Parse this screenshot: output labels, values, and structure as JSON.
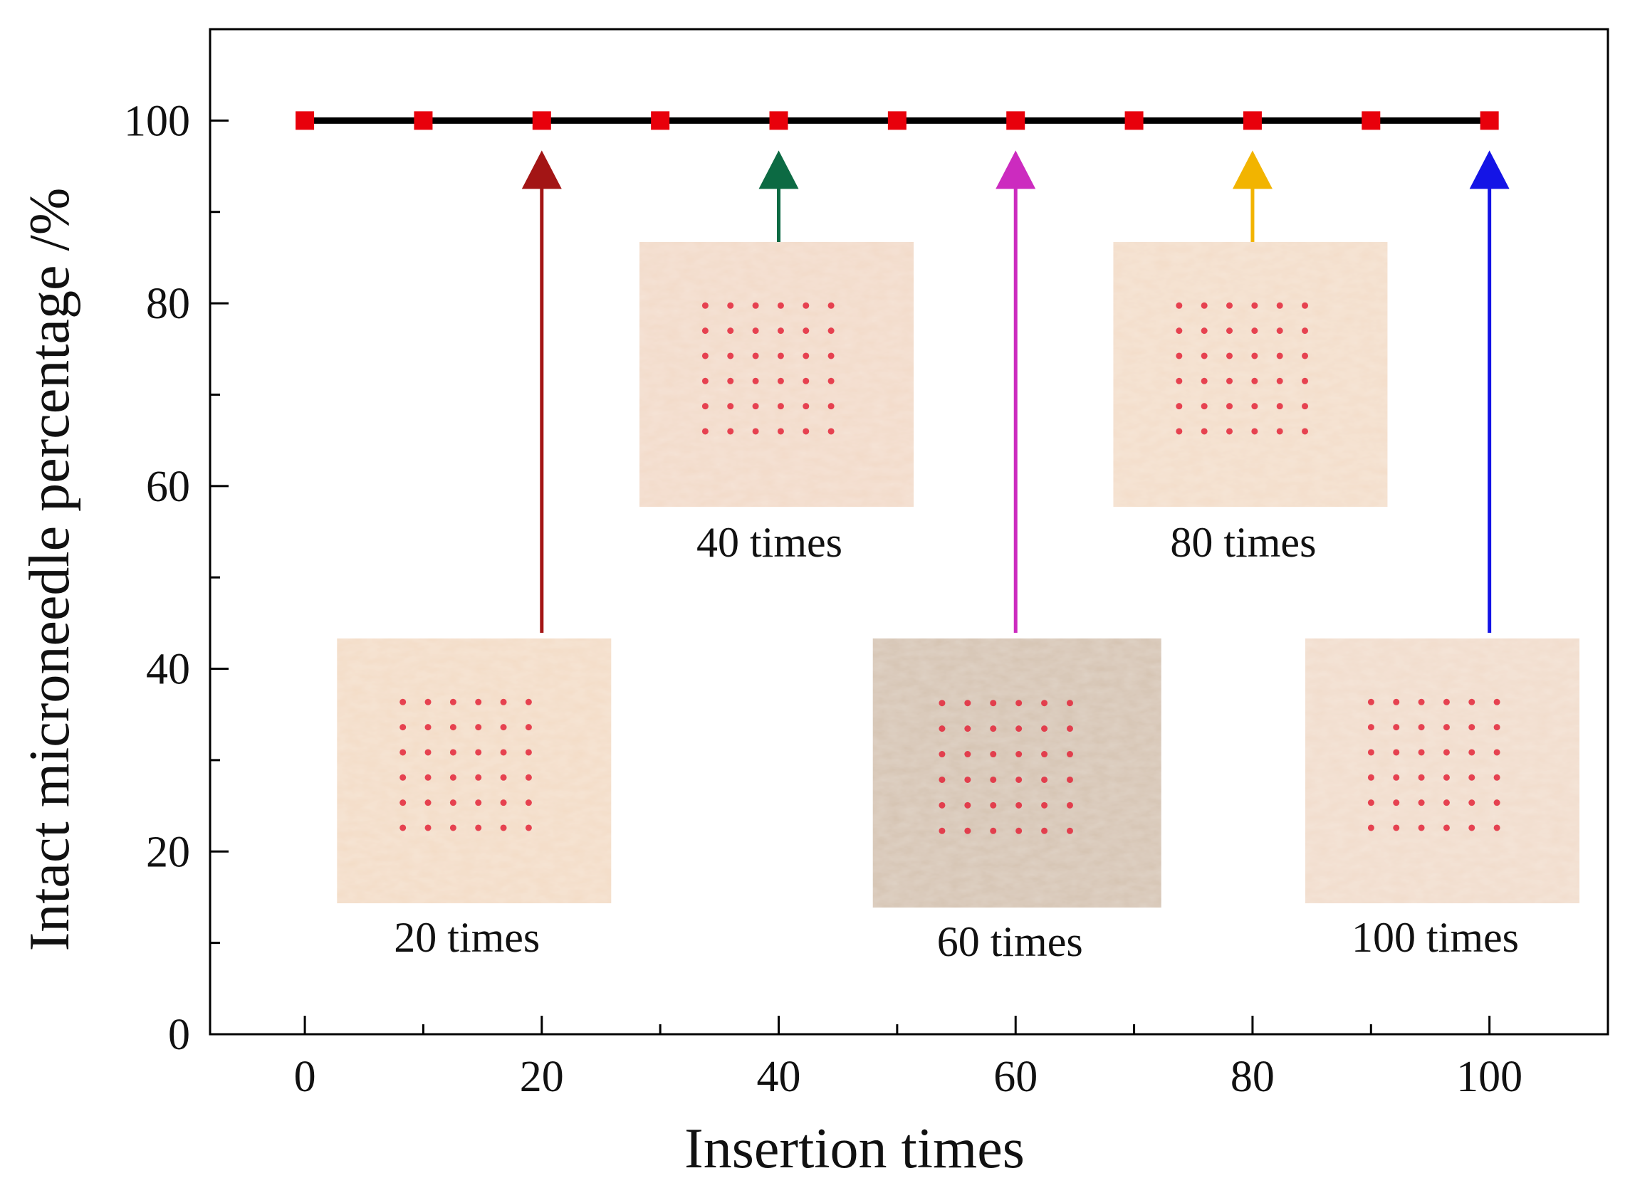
{
  "chart_data": {
    "type": "line",
    "title": "",
    "xlabel": "Insertion times",
    "ylabel": "Intact microneedle percentage /%",
    "xlim": [
      -8,
      110
    ],
    "ylim": [
      0,
      110
    ],
    "grid": false,
    "x_ticks": [
      0,
      20,
      40,
      60,
      80,
      100
    ],
    "x_tick_labels": [
      "0",
      "20",
      "40",
      "60",
      "80",
      "100"
    ],
    "y_ticks": [
      0,
      20,
      40,
      60,
      80,
      100
    ],
    "y_tick_labels": [
      "0",
      "20",
      "40",
      "60",
      "80",
      "100"
    ],
    "series": [
      {
        "name": "Intact microneedle percentage",
        "line_color": "#000000",
        "marker": "square",
        "marker_color": "#e8000b",
        "x": [
          0,
          10,
          20,
          30,
          40,
          50,
          60,
          70,
          80,
          90,
          100
        ],
        "y": [
          100,
          100,
          100,
          100,
          100,
          100,
          100,
          100,
          100,
          100,
          100
        ]
      }
    ],
    "annotations": [
      {
        "x": 20,
        "label": "20 times",
        "arrow_color": "#a31515",
        "photo_tone": "#f3dcc6",
        "placement": "lower"
      },
      {
        "x": 40,
        "label": "40 times",
        "arrow_color": "#0c6a43",
        "photo_tone": "#f2dac8",
        "placement": "upper"
      },
      {
        "x": 60,
        "label": "60 times",
        "arrow_color": "#cc2bbf",
        "photo_tone": "#d5c3b1",
        "placement": "lower"
      },
      {
        "x": 80,
        "label": "80 times",
        "arrow_color": "#f2b400",
        "photo_tone": "#f3ddc9",
        "placement": "upper"
      },
      {
        "x": 100,
        "label": "100 times",
        "arrow_color": "#1414e6",
        "photo_tone": "#f1dccb",
        "placement": "lower"
      }
    ]
  }
}
